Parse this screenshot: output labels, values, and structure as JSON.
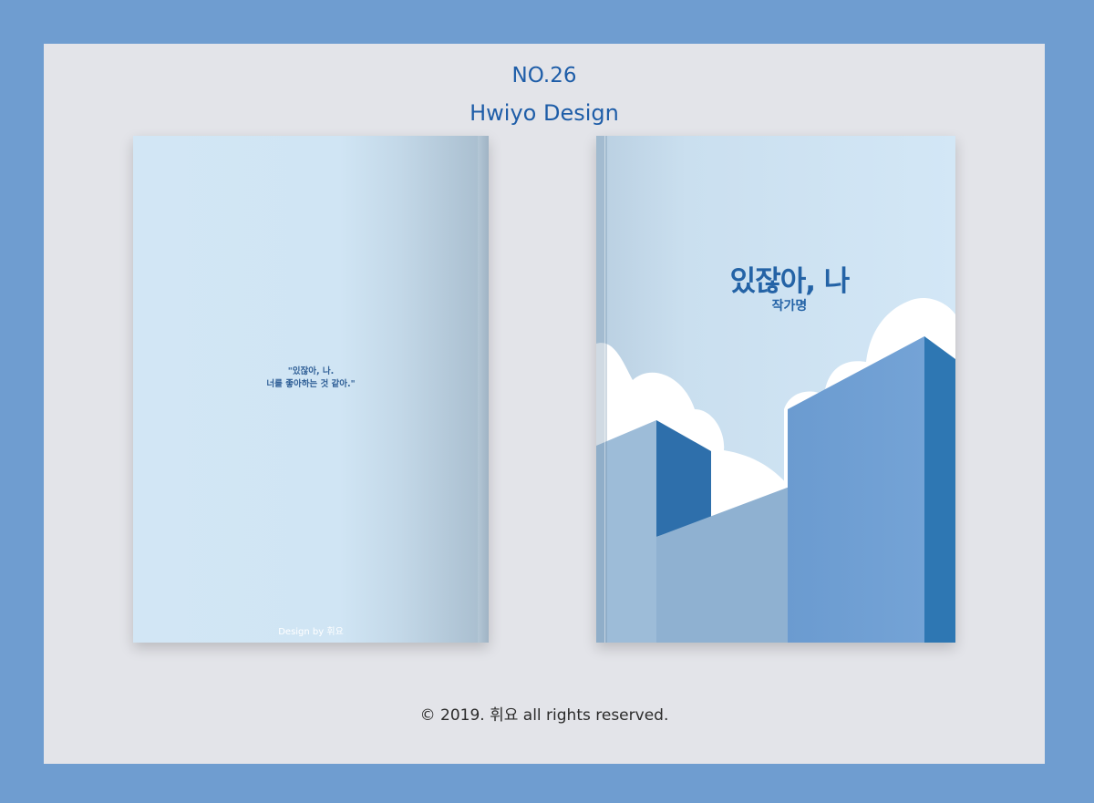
{
  "header": {
    "number": "NO.26",
    "brand": "Hwiyo Design"
  },
  "back_cover": {
    "quote_line1": "\"있잖아, 나.",
    "quote_line2": "너를 좋아하는 것 같아.\"",
    "credit": "Design by 휘요"
  },
  "front_cover": {
    "title": "있잖아, 나",
    "author": "작가명"
  },
  "footer": {
    "copyright": "© 2019. 휘요 all rights reserved."
  },
  "colors": {
    "outer_frame": "#6f9dd0",
    "panel": "#e3e4e9",
    "cover_sky": "#d2e6f5",
    "accent_text": "#1e5da8",
    "building_dark": "#2e77b3",
    "building_light": "#6f9fd3"
  }
}
